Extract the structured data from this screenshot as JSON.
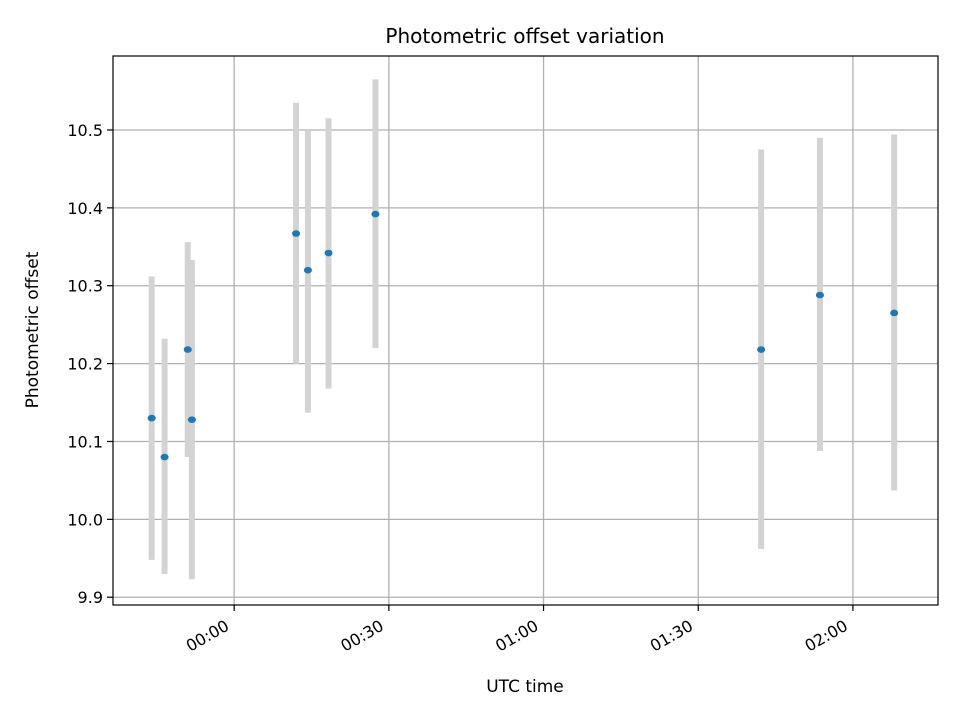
{
  "chart_data": {
    "type": "scatter",
    "title": "Photometric offset variation",
    "xlabel": "UTC time",
    "ylabel": "Photometric offset",
    "x_unit": "minutes (UTC clock time, negative = before 00:00)",
    "xlim": [
      -23.5,
      136.5
    ],
    "ylim": [
      9.89,
      10.595
    ],
    "x_ticks": [
      {
        "value": 0,
        "label": "00:00"
      },
      {
        "value": 30,
        "label": "00:30"
      },
      {
        "value": 60,
        "label": "01:00"
      },
      {
        "value": 90,
        "label": "01:30"
      },
      {
        "value": 120,
        "label": "02:00"
      }
    ],
    "y_ticks": [
      {
        "value": 9.9,
        "label": "9.9"
      },
      {
        "value": 10.0,
        "label": "10.0"
      },
      {
        "value": 10.1,
        "label": "10.1"
      },
      {
        "value": 10.2,
        "label": "10.2"
      },
      {
        "value": 10.3,
        "label": "10.3"
      },
      {
        "value": 10.4,
        "label": "10.4"
      },
      {
        "value": 10.5,
        "label": "10.5"
      }
    ],
    "grid": true,
    "series": [
      {
        "points": [
          {
            "x": -16.0,
            "y": 10.13,
            "yerr_low": 9.948,
            "yerr_high": 10.312
          },
          {
            "x": -13.5,
            "y": 10.08,
            "yerr_low": 9.93,
            "yerr_high": 10.232
          },
          {
            "x": -9.0,
            "y": 10.218,
            "yerr_low": 10.08,
            "yerr_high": 10.356
          },
          {
            "x": -8.2,
            "y": 10.128,
            "yerr_low": 9.923,
            "yerr_high": 10.333
          },
          {
            "x": 12.0,
            "y": 10.367,
            "yerr_low": 10.2,
            "yerr_high": 10.535
          },
          {
            "x": 14.3,
            "y": 10.32,
            "yerr_low": 10.137,
            "yerr_high": 10.5
          },
          {
            "x": 18.3,
            "y": 10.342,
            "yerr_low": 10.168,
            "yerr_high": 10.515
          },
          {
            "x": 27.4,
            "y": 10.392,
            "yerr_low": 10.22,
            "yerr_high": 10.565
          },
          {
            "x": 102.2,
            "y": 10.218,
            "yerr_low": 9.962,
            "yerr_high": 10.475
          },
          {
            "x": 113.6,
            "y": 10.288,
            "yerr_low": 10.088,
            "yerr_high": 10.49
          },
          {
            "x": 128.0,
            "y": 10.265,
            "yerr_low": 10.037,
            "yerr_high": 10.494
          }
        ]
      }
    ],
    "colors": {
      "point": "#1f77b4",
      "errorbar": "#d3d3d3",
      "grid": "#b0b0b0",
      "axes": "#000000"
    }
  }
}
